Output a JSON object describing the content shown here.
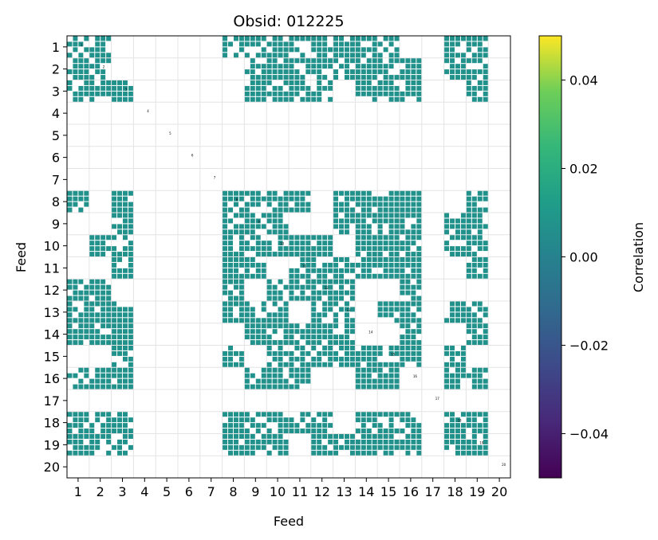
{
  "chart_data": {
    "type": "heatmap",
    "title": "Obsid: 012225",
    "xlabel": "Feed",
    "ylabel": "Feed",
    "feeds": [
      "1",
      "2",
      "3",
      "4",
      "5",
      "6",
      "7",
      "8",
      "9",
      "10",
      "11",
      "12",
      "13",
      "14",
      "15",
      "16",
      "17",
      "18",
      "19",
      "20"
    ],
    "empty_feeds": [
      4,
      5,
      6,
      7,
      17,
      20
    ],
    "correlation_value": 0.0,
    "diagonal_labels": [
      "1",
      "2",
      "3",
      "4",
      "5",
      "6",
      "7",
      "8",
      "9",
      "10",
      "11",
      "12",
      "13",
      "14",
      "15",
      "16",
      "17",
      "18",
      "19",
      "20"
    ],
    "grid": true,
    "colorbar": {
      "label": "Correlation",
      "range": [
        -0.05,
        0.05
      ],
      "ticks": [
        0.04,
        0.02,
        0.0,
        -0.02,
        -0.04
      ],
      "tick_labels": [
        "0.04",
        "0.02",
        "0.00",
        "−0.02",
        "−0.04"
      ],
      "colormap": "viridis"
    },
    "fill_color": "#21918c"
  }
}
